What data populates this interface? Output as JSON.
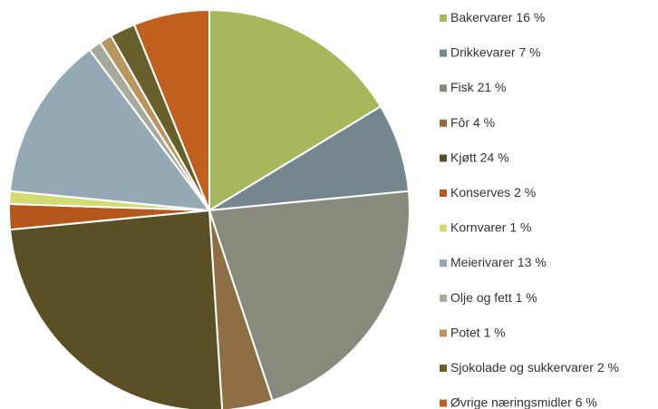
{
  "chart_data": {
    "type": "pie",
    "categories": [
      "Bakervarer",
      "Drikkevarer",
      "Fisk",
      "Fôr",
      "Kjøtt",
      "Konserves",
      "Kornvarer",
      "Meierivarer",
      "Olje og fett",
      "Potet",
      "Sjokolade og sukkervarer",
      "Øvrige næringsmidler"
    ],
    "values": [
      16,
      7,
      21,
      4,
      24,
      2,
      1,
      13,
      1,
      1,
      2,
      6
    ],
    "value_labels": [
      "16 %",
      "7 %",
      "21 %",
      "4 %",
      "24 %",
      "2 %",
      "1 %",
      "13 %",
      "1 %",
      "1 %",
      "2 %",
      "6 %"
    ],
    "colors": [
      "#a8b65c",
      "#74878f",
      "#878a7c",
      "#8f6e45",
      "#5a5026",
      "#b5561c",
      "#d2dc72",
      "#95a9b4",
      "#a6a99b",
      "#b89561",
      "#68602b",
      "#c0601f"
    ],
    "legend": "right"
  }
}
